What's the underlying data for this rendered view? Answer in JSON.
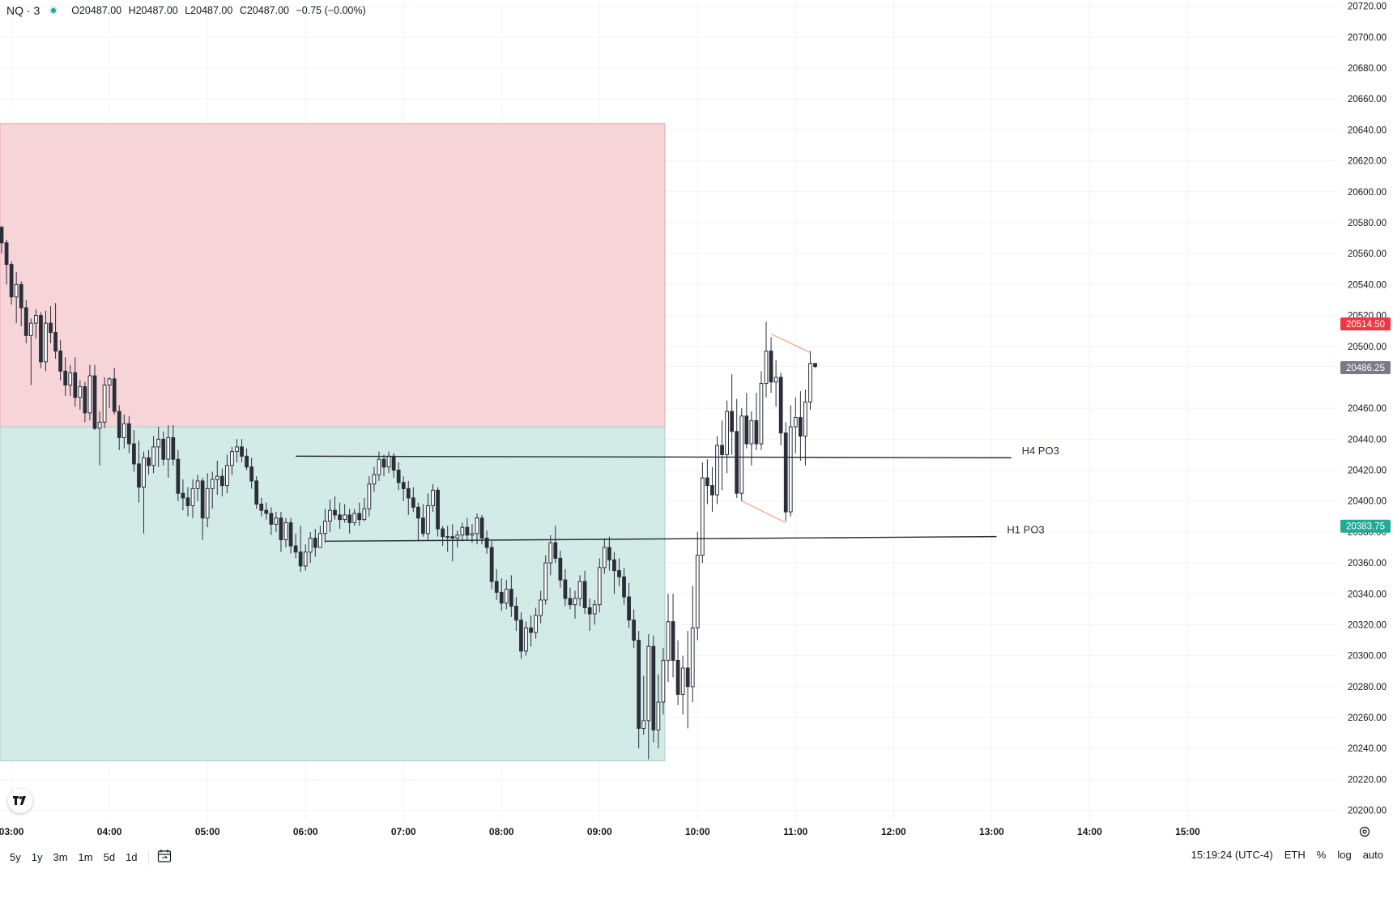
{
  "legend": {
    "symbol": "NQ · 3",
    "open": "O20487.00",
    "high": "H20487.00",
    "low": "L20487.00",
    "close": "C20487.00",
    "change": "−0.75 (−0.00%)"
  },
  "bottom_bar": {
    "ranges": [
      "5y",
      "1y",
      "3m",
      "1m",
      "5d",
      "1d"
    ],
    "clock": "15:19:24 (UTC-4)",
    "session": "ETH",
    "percent": "%",
    "log": "log",
    "auto": "auto"
  },
  "colors": {
    "up_fill": "#ffffff",
    "down_fill": "#2a2e39",
    "wick": "#2a2e39",
    "premium_zone": "#f6d4d8",
    "discount_zone": "#d3ebe6",
    "pattern_lines": "#f0a98a",
    "high_badge": "#f23645",
    "low_badge": "#22ab94",
    "last_badge": "#787b86"
  },
  "icons": {
    "logo": "tradingview-logo-icon",
    "calendar": "calendar-range-icon",
    "settings": "gear-icon"
  },
  "chart_data": {
    "type": "candlestick",
    "interval_minutes": 3,
    "y_axis": {
      "ticks": [
        "20720.00",
        "20700.00",
        "20680.00",
        "20660.00",
        "20640.00",
        "20620.00",
        "20600.00",
        "20580.00",
        "20560.00",
        "20540.00",
        "20520.00",
        "20500.00",
        "20487.00",
        "20460.00",
        "20440.00",
        "20420.00",
        "20400.00",
        "20380.00",
        "20360.00",
        "20340.00",
        "20320.00",
        "20300.00",
        "20280.00",
        "20260.00",
        "20240.00",
        "20220.00",
        "20200.00"
      ],
      "range": [
        20193,
        20724
      ]
    },
    "x_axis": {
      "ticks": [
        "03:00",
        "04:00",
        "05:00",
        "06:00",
        "07:00",
        "08:00",
        "09:00",
        "10:00",
        "11:00",
        "12:00",
        "13:00",
        "14:00",
        "15:00"
      ],
      "range": [
        "02:53",
        "16:32"
      ]
    },
    "price_badges": [
      {
        "label": "20514.50",
        "value": 20514.5,
        "kind": "high"
      },
      {
        "label": "20486.25",
        "value": 20486.25,
        "kind": "last"
      },
      {
        "label": "20383.75",
        "value": 20383.75,
        "kind": "low"
      }
    ],
    "zones": [
      {
        "kind": "premium",
        "from_time": "02:53",
        "to_time": "09:40",
        "low": 20448,
        "high": 20644
      },
      {
        "kind": "discount",
        "from_time": "02:53",
        "to_time": "09:40",
        "low": 20232,
        "high": 20448
      }
    ],
    "levels": [
      {
        "label": "H4 PO3",
        "from_time": "05:54",
        "to_time": "13:12",
        "from_value": 20429,
        "to_value": 20428
      },
      {
        "label": "H1 PO3",
        "from_time": "06:12",
        "to_time": "13:03",
        "from_value": 20374,
        "to_value": 20377
      }
    ],
    "pattern": [
      {
        "from_time": "10:45",
        "from_value": 20508,
        "to_time": "11:09",
        "to_value": 20496
      },
      {
        "from_time": "10:27",
        "from_value": 20400,
        "to_time": "10:54",
        "to_value": 20386
      }
    ],
    "candles": [
      [
        "02:54",
        20577,
        20578,
        20560,
        20567
      ],
      [
        "02:57",
        20567,
        20569,
        20540,
        20553
      ],
      [
        "03:00",
        20553,
        20555,
        20527,
        20532
      ],
      [
        "03:03",
        20532,
        20548,
        20515,
        20540
      ],
      [
        "03:06",
        20540,
        20542,
        20513,
        20525
      ],
      [
        "03:09",
        20525,
        20530,
        20502,
        20507
      ],
      [
        "03:12",
        20507,
        20518,
        20475,
        20515
      ],
      [
        "03:15",
        20515,
        20524,
        20505,
        20520
      ],
      [
        "03:18",
        20520,
        20522,
        20486,
        20490
      ],
      [
        "03:21",
        20490,
        20523,
        20484,
        20515
      ],
      [
        "03:24",
        20515,
        20526,
        20502,
        20509
      ],
      [
        "03:27",
        20509,
        20528,
        20492,
        20497
      ],
      [
        "03:30",
        20497,
        20504,
        20478,
        20484
      ],
      [
        "03:33",
        20484,
        20493,
        20468,
        20475
      ],
      [
        "03:36",
        20475,
        20488,
        20468,
        20483
      ],
      [
        "03:39",
        20483,
        20493,
        20461,
        20467
      ],
      [
        "03:42",
        20467,
        20478,
        20459,
        20474
      ],
      [
        "03:45",
        20474,
        20477,
        20451,
        20457
      ],
      [
        "03:48",
        20457,
        20488,
        20452,
        20481
      ],
      [
        "03:51",
        20481,
        20488,
        20446,
        20447
      ],
      [
        "03:54",
        20447,
        20458,
        20423,
        20451
      ],
      [
        "03:57",
        20451,
        20480,
        20447,
        20475
      ],
      [
        "04:00",
        20475,
        20480,
        20460,
        20479
      ],
      [
        "04:03",
        20479,
        20486,
        20456,
        20458
      ],
      [
        "04:06",
        20458,
        20462,
        20433,
        20441
      ],
      [
        "04:09",
        20441,
        20456,
        20434,
        20450
      ],
      [
        "04:12",
        20450,
        20455,
        20431,
        20437
      ],
      [
        "04:15",
        20437,
        20446,
        20419,
        20424
      ],
      [
        "04:18",
        20424,
        20439,
        20399,
        20409
      ],
      [
        "04:21",
        20409,
        20432,
        20379,
        20428
      ],
      [
        "04:24",
        20428,
        20433,
        20417,
        20423
      ],
      [
        "04:27",
        20423,
        20442,
        20418,
        20435
      ],
      [
        "04:30",
        20435,
        20448,
        20422,
        20440
      ],
      [
        "04:33",
        20440,
        20445,
        20423,
        20427
      ],
      [
        "04:36",
        20427,
        20449,
        20415,
        20441
      ],
      [
        "04:39",
        20441,
        20449,
        20423,
        20427
      ],
      [
        "04:42",
        20427,
        20433,
        20400,
        20405
      ],
      [
        "04:45",
        20405,
        20414,
        20394,
        20402
      ],
      [
        "04:48",
        20402,
        20409,
        20390,
        20397
      ],
      [
        "04:51",
        20397,
        20414,
        20389,
        20408
      ],
      [
        "04:54",
        20408,
        20417,
        20400,
        20413
      ],
      [
        "04:57",
        20413,
        20415,
        20375,
        20389
      ],
      [
        "05:00",
        20389,
        20418,
        20383,
        20408
      ],
      [
        "05:03",
        20408,
        20419,
        20395,
        20414
      ],
      [
        "05:06",
        20414,
        20426,
        20404,
        20416
      ],
      [
        "05:09",
        20416,
        20421,
        20403,
        20410
      ],
      [
        "05:12",
        20410,
        20430,
        20405,
        20423
      ],
      [
        "05:15",
        20423,
        20435,
        20417,
        20432
      ],
      [
        "05:18",
        20432,
        20440,
        20425,
        20435
      ],
      [
        "05:21",
        20435,
        20440,
        20425,
        20429
      ],
      [
        "05:24",
        20429,
        20434,
        20420,
        20422
      ],
      [
        "05:27",
        20422,
        20428,
        20408,
        20413
      ],
      [
        "05:30",
        20413,
        20416,
        20395,
        20398
      ],
      [
        "05:33",
        20398,
        20402,
        20390,
        20394
      ],
      [
        "05:36",
        20394,
        20399,
        20388,
        20392
      ],
      [
        "05:39",
        20392,
        20396,
        20378,
        20385
      ],
      [
        "05:42",
        20385,
        20393,
        20380,
        20389
      ],
      [
        "05:45",
        20389,
        20393,
        20367,
        20375
      ],
      [
        "05:48",
        20375,
        20389,
        20370,
        20386
      ],
      [
        "05:51",
        20386,
        20389,
        20366,
        20371
      ],
      [
        "05:54",
        20371,
        20379,
        20363,
        20367
      ],
      [
        "05:57",
        20367,
        20384,
        20354,
        20358
      ],
      [
        "06:00",
        20358,
        20372,
        20355,
        20367
      ],
      [
        "06:03",
        20367,
        20380,
        20360,
        20376
      ],
      [
        "06:06",
        20376,
        20382,
        20364,
        20370
      ],
      [
        "06:09",
        20370,
        20384,
        20370,
        20379
      ],
      [
        "06:12",
        20379,
        20395,
        20373,
        20387
      ],
      [
        "06:15",
        20387,
        20401,
        20380,
        20394
      ],
      [
        "06:18",
        20394,
        20403,
        20388,
        20391
      ],
      [
        "06:21",
        20391,
        20399,
        20382,
        20388
      ],
      [
        "06:24",
        20388,
        20398,
        20386,
        20391
      ],
      [
        "06:27",
        20391,
        20395,
        20379,
        20386
      ],
      [
        "06:30",
        20386,
        20395,
        20384,
        20392
      ],
      [
        "06:33",
        20392,
        20399,
        20384,
        20388
      ],
      [
        "06:36",
        20388,
        20402,
        20387,
        20395
      ],
      [
        "06:39",
        20395,
        20416,
        20390,
        20411
      ],
      [
        "06:42",
        20411,
        20422,
        20406,
        20417
      ],
      [
        "06:45",
        20417,
        20432,
        20413,
        20427
      ],
      [
        "06:48",
        20427,
        20430,
        20416,
        20422
      ],
      [
        "06:51",
        20422,
        20432,
        20418,
        20429
      ],
      [
        "06:54",
        20429,
        20431,
        20415,
        20420
      ],
      [
        "06:57",
        20420,
        20425,
        20407,
        20412
      ],
      [
        "07:00",
        20412,
        20416,
        20400,
        20408
      ],
      [
        "07:03",
        20408,
        20413,
        20391,
        20402
      ],
      [
        "07:06",
        20402,
        20409,
        20393,
        20396
      ],
      [
        "07:09",
        20396,
        20399,
        20374,
        20389
      ],
      [
        "07:12",
        20389,
        20398,
        20377,
        20379
      ],
      [
        "07:15",
        20379,
        20405,
        20375,
        20397
      ],
      [
        "07:18",
        20397,
        20411,
        20393,
        20407
      ],
      [
        "07:21",
        20407,
        20409,
        20377,
        20382
      ],
      [
        "07:24",
        20382,
        20384,
        20371,
        20377
      ],
      [
        "07:27",
        20377,
        20384,
        20367,
        20377
      ],
      [
        "07:30",
        20377,
        20385,
        20361,
        20376
      ],
      [
        "07:33",
        20376,
        20381,
        20370,
        20378
      ],
      [
        "07:36",
        20378,
        20386,
        20374,
        20383
      ],
      [
        "07:39",
        20383,
        20389,
        20375,
        20378
      ],
      [
        "07:42",
        20378,
        20385,
        20373,
        20379
      ],
      [
        "07:45",
        20379,
        20392,
        20372,
        20389
      ],
      [
        "07:48",
        20389,
        20391,
        20372,
        20376
      ],
      [
        "07:51",
        20376,
        20381,
        20366,
        20370
      ],
      [
        "07:54",
        20370,
        20374,
        20343,
        20348
      ],
      [
        "07:57",
        20348,
        20356,
        20336,
        20341
      ],
      [
        "08:00",
        20341,
        20350,
        20329,
        20334
      ],
      [
        "08:03",
        20334,
        20349,
        20330,
        20343
      ],
      [
        "08:06",
        20343,
        20352,
        20325,
        20332
      ],
      [
        "08:09",
        20332,
        20338,
        20316,
        20323
      ],
      [
        "08:12",
        20323,
        20328,
        20298,
        20303
      ],
      [
        "08:15",
        20303,
        20322,
        20300,
        20318
      ],
      [
        "08:18",
        20318,
        20326,
        20306,
        20315
      ],
      [
        "08:21",
        20315,
        20331,
        20311,
        20326
      ],
      [
        "08:24",
        20326,
        20342,
        20321,
        20336
      ],
      [
        "08:27",
        20336,
        20365,
        20333,
        20360
      ],
      [
        "08:30",
        20360,
        20378,
        20352,
        20373
      ],
      [
        "08:33",
        20373,
        20384,
        20360,
        20363
      ],
      [
        "08:36",
        20363,
        20368,
        20344,
        20349
      ],
      [
        "08:39",
        20349,
        20356,
        20332,
        20337
      ],
      [
        "08:42",
        20337,
        20344,
        20330,
        20333
      ],
      [
        "08:45",
        20333,
        20342,
        20324,
        20337
      ],
      [
        "08:48",
        20337,
        20352,
        20332,
        20348
      ],
      [
        "08:51",
        20348,
        20355,
        20327,
        20331
      ],
      [
        "08:54",
        20331,
        20337,
        20316,
        20327
      ],
      [
        "08:57",
        20327,
        20336,
        20320,
        20333
      ],
      [
        "09:00",
        20333,
        20363,
        20328,
        20357
      ],
      [
        "09:03",
        20357,
        20376,
        20353,
        20370
      ],
      [
        "09:06",
        20370,
        20377,
        20355,
        20362
      ],
      [
        "09:09",
        20362,
        20367,
        20340,
        20355
      ],
      [
        "09:12",
        20355,
        20363,
        20345,
        20351
      ],
      [
        "09:15",
        20351,
        20357,
        20333,
        20338
      ],
      [
        "09:18",
        20338,
        20347,
        20318,
        20323
      ],
      [
        "09:21",
        20323,
        20330,
        20305,
        20310
      ],
      [
        "09:24",
        20310,
        20316,
        20240,
        20253
      ],
      [
        "09:27",
        20253,
        20287,
        20249,
        20258
      ],
      [
        "09:30",
        20258,
        20314,
        20233,
        20306
      ],
      [
        "09:33",
        20306,
        20313,
        20244,
        20252
      ],
      [
        "09:36",
        20252,
        20288,
        20240,
        20270
      ],
      [
        "09:39",
        20270,
        20305,
        20262,
        20297
      ],
      [
        "09:42",
        20297,
        20340,
        20283,
        20322
      ],
      [
        "09:45",
        20322,
        20340,
        20286,
        20297
      ],
      [
        "09:48",
        20297,
        20310,
        20268,
        20275
      ],
      [
        "09:51",
        20275,
        20300,
        20262,
        20292
      ],
      [
        "09:54",
        20292,
        20316,
        20253,
        20280
      ],
      [
        "09:57",
        20280,
        20345,
        20270,
        20318
      ],
      [
        "10:00",
        20318,
        20380,
        20310,
        20365
      ],
      [
        "10:03",
        20365,
        20425,
        20360,
        20415
      ],
      [
        "10:06",
        20415,
        20427,
        20398,
        20410
      ],
      [
        "10:09",
        20410,
        20422,
        20393,
        20404
      ],
      [
        "10:12",
        20404,
        20442,
        20398,
        20436
      ],
      [
        "10:15",
        20436,
        20452,
        20407,
        20430
      ],
      [
        "10:18",
        20430,
        20465,
        20418,
        20458
      ],
      [
        "10:21",
        20458,
        20482,
        20430,
        20445
      ],
      [
        "10:24",
        20445,
        20466,
        20402,
        20405
      ],
      [
        "10:27",
        20405,
        20460,
        20400,
        20455
      ],
      [
        "10:30",
        20455,
        20470,
        20434,
        20437
      ],
      [
        "10:33",
        20437,
        20458,
        20423,
        20452
      ],
      [
        "10:36",
        20452,
        20470,
        20433,
        20437
      ],
      [
        "10:39",
        20437,
        20484,
        20433,
        20476
      ],
      [
        "10:42",
        20476,
        20516,
        20467,
        20497
      ],
      [
        "10:45",
        20497,
        20506,
        20470,
        20477
      ],
      [
        "10:48",
        20477,
        20491,
        20461,
        20480
      ],
      [
        "10:51",
        20480,
        20483,
        20436,
        20444
      ],
      [
        "10:54",
        20444,
        20451,
        20387,
        20393
      ],
      [
        "10:57",
        20393,
        20462,
        20390,
        20448
      ],
      [
        "11:00",
        20448,
        20467,
        20431,
        20454
      ],
      [
        "11:03",
        20454,
        20471,
        20426,
        20442
      ],
      [
        "11:06",
        20442,
        20472,
        20423,
        20464
      ],
      [
        "11:09",
        20464,
        20497,
        20459,
        20489
      ],
      [
        "11:12",
        20489,
        20489,
        20486,
        20487
      ]
    ]
  }
}
